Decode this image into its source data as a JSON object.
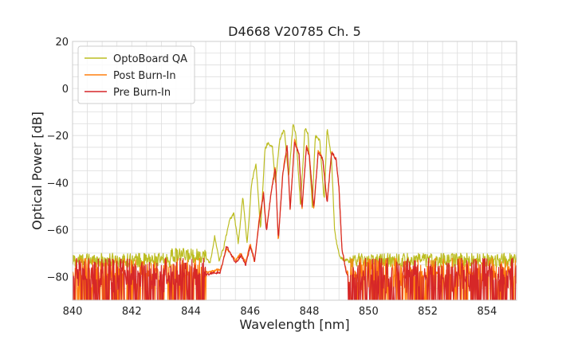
{
  "chart_data": {
    "type": "line",
    "title": "D4668 V20785 Ch. 5",
    "xlabel": "Wavelength [nm]",
    "ylabel": "Optical Power [dB]",
    "xlim": [
      840,
      855
    ],
    "ylim": [
      -90,
      20
    ],
    "xticks": [
      840,
      842,
      844,
      846,
      848,
      850,
      852,
      854
    ],
    "yticks": [
      20,
      0,
      -20,
      -40,
      -60,
      -80
    ],
    "xtick_labels": [
      "840",
      "842",
      "844",
      "846",
      "848",
      "850",
      "852",
      "854"
    ],
    "ytick_labels": [
      "20",
      "0",
      "−20",
      "−40",
      "−60",
      "−80"
    ],
    "grid": true,
    "grid_minor": true,
    "legend_position": "top-left",
    "series": [
      {
        "name": "OptoBoard QA",
        "color": "#bcbd22",
        "noise_floor": -73,
        "noise_range": [
          -76,
          -70
        ],
        "x": [
          840.0,
          842.0,
          843.2,
          844.0,
          844.4,
          844.65,
          844.8,
          844.95,
          845.1,
          845.3,
          845.45,
          845.6,
          845.75,
          845.9,
          846.05,
          846.2,
          846.35,
          846.5,
          846.6,
          846.75,
          846.85,
          847.0,
          847.15,
          847.3,
          847.45,
          847.55,
          847.7,
          847.85,
          847.95,
          848.1,
          848.2,
          848.35,
          848.5,
          848.6,
          848.75,
          848.85,
          848.95,
          849.05,
          849.2,
          849.4,
          850.0,
          855.0
        ],
        "y": [
          -73,
          -73,
          -72,
          -70,
          -71,
          -74,
          -63,
          -73,
          -68,
          -56,
          -53,
          -66,
          -46,
          -66,
          -40,
          -32,
          -60,
          -26,
          -23,
          -25,
          -40,
          -22,
          -17,
          -38,
          -15,
          -20,
          -50,
          -17,
          -19,
          -50,
          -20,
          -22,
          -48,
          -17,
          -30,
          -60,
          -68,
          -72,
          -73,
          -73,
          -73,
          -73
        ]
      },
      {
        "name": "Post Burn-In",
        "color": "#ff7f0e",
        "noise_floor": -78,
        "noise_range": [
          -90,
          -72
        ],
        "x": [
          840.0,
          844.6,
          845.0,
          845.2,
          845.5,
          845.7,
          845.85,
          846.0,
          846.15,
          846.3,
          846.45,
          846.55,
          846.7,
          846.85,
          846.95,
          847.1,
          847.25,
          847.35,
          847.5,
          847.65,
          847.75,
          847.9,
          848.0,
          848.15,
          848.3,
          848.45,
          848.6,
          848.75,
          848.9,
          849.0,
          849.1,
          849.25,
          855.0
        ],
        "y": [
          -78,
          -78,
          -77,
          -68,
          -73,
          -70,
          -74,
          -66,
          -74,
          -56,
          -44,
          -60,
          -45,
          -33,
          -65,
          -36,
          -24,
          -52,
          -22,
          -28,
          -52,
          -24,
          -28,
          -52,
          -26,
          -30,
          -48,
          -27,
          -30,
          -42,
          -68,
          -78,
          -78
        ]
      },
      {
        "name": "Pre Burn-In",
        "color": "#d62728",
        "noise_floor": -79,
        "noise_range": [
          -90,
          -72
        ],
        "x": [
          840.0,
          844.6,
          845.0,
          845.2,
          845.5,
          845.7,
          845.85,
          846.0,
          846.15,
          846.3,
          846.45,
          846.55,
          846.7,
          846.85,
          846.95,
          847.1,
          847.25,
          847.35,
          847.5,
          847.65,
          847.75,
          847.9,
          848.0,
          848.15,
          848.3,
          848.45,
          848.6,
          848.75,
          848.9,
          849.0,
          849.1,
          849.25,
          855.0
        ],
        "y": [
          -79,
          -79,
          -78,
          -67,
          -74,
          -71,
          -75,
          -67,
          -73,
          -57,
          -45,
          -61,
          -45,
          -34,
          -64,
          -37,
          -24,
          -51,
          -23,
          -28,
          -51,
          -25,
          -29,
          -51,
          -27,
          -30,
          -49,
          -27,
          -30,
          -42,
          -68,
          -79,
          -79
        ]
      }
    ]
  }
}
